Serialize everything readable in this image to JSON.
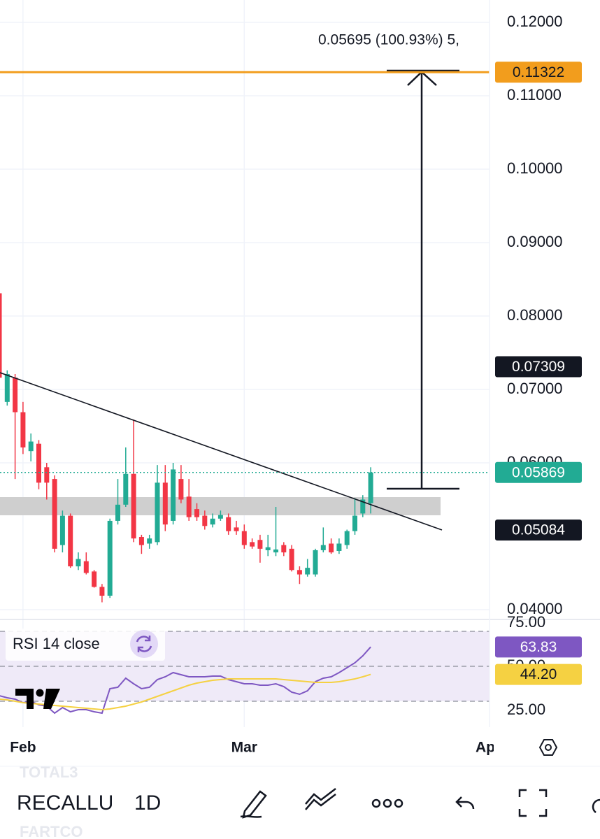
{
  "chart_data": [
    {
      "type": "candlestick",
      "categories": [
        null,
        null,
        null,
        "Feb",
        null,
        null,
        null,
        null,
        null,
        null,
        null,
        null,
        null,
        null,
        null,
        null,
        null,
        null,
        null,
        null,
        null,
        null,
        null,
        null,
        null,
        null,
        null,
        null,
        null,
        null,
        null,
        "Mar",
        null,
        null,
        null,
        null,
        null,
        null,
        null,
        null,
        null,
        null,
        null,
        null,
        null,
        null,
        null,
        null
      ],
      "x_end_label": "Apr",
      "open": [
        0.0831,
        0.0683,
        0.0716,
        0.0669,
        0.0616,
        0.0626,
        0.0594,
        0.0578,
        0.0488,
        0.0528,
        0.0459,
        0.0466,
        0.0452,
        0.0431,
        0.0419,
        0.0521,
        0.0543,
        0.0585,
        0.0499,
        0.049,
        0.0492,
        0.0573,
        0.0521,
        0.0578,
        0.0554,
        0.0537,
        0.0528,
        0.0516,
        0.0524,
        0.0526,
        0.0512,
        0.0507,
        0.0492,
        0.0495,
        0.0481,
        0.0478,
        0.0488,
        0.0483,
        0.0454,
        0.0448,
        0.0448,
        0.0481,
        0.049,
        0.048,
        0.0488,
        0.0507,
        0.0531,
        0.0545
      ],
      "high": [
        0.0835,
        0.0726,
        0.0721,
        0.0683,
        0.064,
        0.0631,
        0.06,
        0.0583,
        0.0535,
        0.0531,
        0.0478,
        0.0478,
        0.0454,
        0.0435,
        0.0524,
        0.0578,
        0.0621,
        0.0659,
        0.0502,
        0.0502,
        0.0597,
        0.0597,
        0.06,
        0.0597,
        0.0578,
        0.0545,
        0.0535,
        0.0531,
        0.0535,
        0.0531,
        0.0521,
        0.0516,
        0.0497,
        0.0502,
        0.0502,
        0.054,
        0.0492,
        0.0488,
        0.0459,
        0.0469,
        0.0483,
        0.0512,
        0.0497,
        0.0497,
        0.0509,
        0.0552,
        0.0556,
        0.0594
      ],
      "low": [
        0.0709,
        0.0678,
        0.0578,
        0.0612,
        0.0602,
        0.0564,
        0.055,
        0.0478,
        0.0478,
        0.0457,
        0.0454,
        0.0448,
        0.043,
        0.041,
        0.0416,
        0.0516,
        0.054,
        0.0492,
        0.0476,
        0.0483,
        0.0488,
        0.0507,
        0.0516,
        0.0545,
        0.0521,
        0.0521,
        0.0509,
        0.0512,
        0.0521,
        0.0502,
        0.0502,
        0.0483,
        0.0483,
        0.0464,
        0.0473,
        0.0473,
        0.0473,
        0.0452,
        0.0435,
        0.0445,
        0.0445,
        0.0478,
        0.0476,
        0.0476,
        0.0483,
        0.0502,
        0.0526,
        0.0531
      ],
      "close": [
        0.0716,
        0.0721,
        0.0669,
        0.0621,
        0.0629,
        0.0573,
        0.0573,
        0.0483,
        0.0528,
        0.0459,
        0.0469,
        0.045,
        0.0431,
        0.0419,
        0.0521,
        0.0543,
        0.0585,
        0.0497,
        0.0488,
        0.0497,
        0.0573,
        0.0516,
        0.0591,
        0.055,
        0.0526,
        0.0526,
        0.0514,
        0.0524,
        0.0529,
        0.0507,
        0.0507,
        0.0488,
        0.0486,
        0.0483,
        0.0485,
        0.0482,
        0.0478,
        0.0454,
        0.0448,
        0.0457,
        0.0481,
        0.0488,
        0.0478,
        0.049,
        0.0507,
        0.0528,
        0.055,
        0.05869
      ],
      "up_color": "#22ab94",
      "down_color": "#f23645",
      "ylim": [
        0.03876,
        0.12305
      ],
      "yticks": [
        {
          "value": 0.12,
          "label": "0.12000"
        },
        {
          "value": 0.11,
          "label": "0.11000"
        },
        {
          "value": 0.1,
          "label": "0.10000"
        },
        {
          "value": 0.09,
          "label": "0.09000"
        },
        {
          "value": 0.08,
          "label": "0.08000"
        },
        {
          "value": 0.07,
          "label": "0.07000"
        },
        {
          "value": 0.06,
          "label": "0.06000"
        },
        {
          "value": 0.04,
          "label": "0.04000"
        }
      ],
      "grid": true,
      "price_lines": [
        {
          "value": 0.11322,
          "color": "#f29d1d",
          "text_color": "#131722",
          "line": true
        },
        {
          "value": 0.07309,
          "color": "#131722",
          "text_color": "#ffffff",
          "line": false
        },
        {
          "value": 0.05084,
          "color": "#131722",
          "text_color": "#ffffff",
          "line": false
        }
      ],
      "last_price": {
        "color": "#22ab94",
        "text_color": "#ffffff",
        "line": "dotted"
      },
      "measure_label": "0.05695 (100.93%) 5,"
    },
    {
      "type": "line",
      "title": "RSI 14 close",
      "ylim": [
        6.5,
        83.5
      ],
      "yticks": [
        {
          "value": 75,
          "label": "75.00"
        },
        {
          "value": 50,
          "label": "50.00"
        },
        {
          "value": 25,
          "label": "25.00"
        }
      ],
      "band_color": "#efeaf8",
      "series": [
        {
          "color": "#7e57c2",
          "text_color": "#ffffff",
          "values": [
            29,
            27.5,
            26.5,
            24,
            25,
            22.5,
            21.5,
            16.5,
            20.5,
            17.5,
            19,
            19,
            17.5,
            16.5,
            34,
            35,
            41.5,
            37.5,
            34,
            35,
            40.5,
            42.5,
            45.5,
            44,
            42.5,
            42.5,
            42.5,
            43,
            43,
            40.5,
            39,
            37.5,
            37.5,
            36.5,
            36.5,
            37.5,
            35.5,
            31.5,
            30,
            32.5,
            39,
            41.5,
            42.5,
            45.5,
            49,
            52.5,
            57.5,
            63.83
          ]
        },
        {
          "color": "#f5d142",
          "text_color": "#131722",
          "values": [
            26.5,
            26,
            25,
            24,
            23.5,
            23,
            22.5,
            22,
            21.5,
            21,
            20.5,
            20,
            19.5,
            19,
            19.5,
            20.5,
            21.5,
            23,
            24.5,
            26.5,
            28.5,
            30.5,
            32.5,
            34.5,
            36.5,
            38,
            39,
            40,
            40.5,
            41,
            41,
            41,
            41,
            41,
            41,
            41,
            40.5,
            40,
            39.5,
            39,
            38.5,
            38.5,
            38.5,
            39,
            40,
            41,
            42.5,
            44.2
          ],
          "value_labels": [
            null,
            null,
            null,
            null,
            null,
            null,
            null,
            null,
            null,
            null,
            null,
            null,
            null,
            null,
            null,
            null,
            null,
            null,
            null,
            null,
            null,
            null,
            null,
            null,
            null,
            null,
            null,
            null,
            null,
            null,
            null,
            null,
            null,
            null,
            null,
            null,
            null,
            null,
            null,
            null,
            null,
            null,
            null,
            null,
            null,
            null,
            null,
            "44.20"
          ]
        }
      ]
    }
  ],
  "toolbar": {
    "watchlist_above": "TOTAL3",
    "symbol": "RECALLU",
    "interval": "1D",
    "watchlist_below": "FARTCO"
  }
}
